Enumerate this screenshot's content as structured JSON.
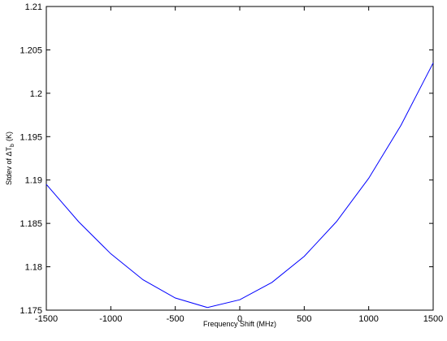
{
  "chart_data": {
    "type": "line",
    "xlabel": "Frequency Shift (MHz)",
    "ylabel": {
      "text": "Stdev of ΔT",
      "subscript": "b",
      "unit": "(K)"
    },
    "x": [
      -1500,
      -1250,
      -1000,
      -750,
      -500,
      -250,
      0,
      250,
      500,
      750,
      1000,
      1250,
      1500
    ],
    "series": [
      {
        "color": "#0000ff",
        "values": [
          1.1895,
          1.1852,
          1.1815,
          1.1785,
          1.1764,
          1.1753,
          1.1762,
          1.1782,
          1.1812,
          1.1852,
          1.1902,
          1.1963,
          1.2035
        ]
      }
    ],
    "xlim": [
      -1500,
      1500
    ],
    "xticks": [
      -1500,
      -1000,
      -500,
      0,
      500,
      1000,
      1500
    ],
    "ylim": [
      1.175,
      1.21
    ],
    "yticks": [
      1.175,
      1.18,
      1.185,
      1.19,
      1.195,
      1.2,
      1.205,
      1.21
    ],
    "grid": false
  }
}
